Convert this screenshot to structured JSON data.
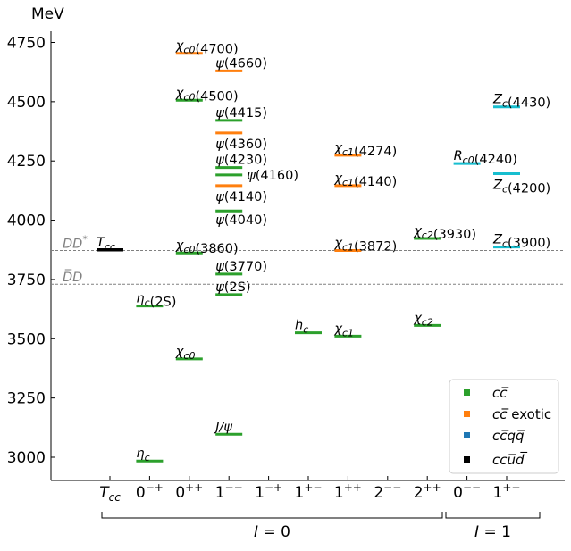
{
  "chart_data": {
    "type": "scatter",
    "yunit": "MeV",
    "ylim": [
      2900,
      4800
    ],
    "yticks": [
      3000,
      3250,
      3500,
      3750,
      4000,
      4250,
      4500,
      4750
    ],
    "xcategories": [
      {
        "label": "T_cc",
        "html": "T<sub>cc</sub>"
      },
      {
        "label": "0^{-+}",
        "html": "0<sup>−+</sup>"
      },
      {
        "label": "0^{++}",
        "html": "0<sup>++</sup>"
      },
      {
        "label": "1^{--}",
        "html": "1<sup>−−</sup>"
      },
      {
        "label": "1^{-+}",
        "html": "1<sup>−+</sup>"
      },
      {
        "label": "1^{+-}",
        "html": "1<sup>+−</sup>"
      },
      {
        "label": "1^{++}",
        "html": "1<sup>++</sup>"
      },
      {
        "label": "2^{--}",
        "html": "2<sup>−−</sup>"
      },
      {
        "label": "2^{++}",
        "html": "2<sup>++</sup>"
      },
      {
        "label": "0^{--}",
        "html": "0<sup>−−</sup>"
      },
      {
        "label": "1^{+-}",
        "html": "1<sup>+−</sup>"
      }
    ],
    "groups": [
      {
        "label": "I = 0",
        "from": 0,
        "to": 8
      },
      {
        "label": "I = 1",
        "from": 9,
        "to": 10
      }
    ],
    "thresholds": [
      {
        "label": "DD*",
        "value": 3872
      },
      {
        "label": "D̅D",
        "value": 3730
      }
    ],
    "legend": {
      "placement": "lower-right",
      "entries": [
        {
          "label": "cc̅",
          "color": "#2ca02c"
        },
        {
          "label": "cc̅ exotic",
          "color": "#ff7f0e"
        },
        {
          "label": "cc̅qq̅",
          "color": "#1f77b4"
        },
        {
          "label": "ccu̅d̅",
          "color": "#000000"
        }
      ]
    },
    "states": [
      {
        "name": "T_cc",
        "x": 0,
        "y": 3875,
        "kind": "ccud",
        "color": "#000000"
      },
      {
        "name": "η_c(2S)",
        "x": 1,
        "y": 3638,
        "kind": "cc",
        "color": "#2ca02c"
      },
      {
        "name": "η_c",
        "x": 1,
        "y": 2984,
        "kind": "cc",
        "color": "#2ca02c"
      },
      {
        "name": "χ_c0(4700)",
        "x": 2,
        "y": 4704,
        "kind": "cc exotic",
        "color": "#ff7f0e"
      },
      {
        "name": "χ_c0(4500)",
        "x": 2,
        "y": 4506,
        "kind": "cc",
        "color": "#2ca02c"
      },
      {
        "name": "χ_c0(3860)",
        "x": 2,
        "y": 3862,
        "kind": "cc",
        "color": "#2ca02c"
      },
      {
        "name": "χ_c0",
        "x": 2,
        "y": 3415,
        "kind": "cc",
        "color": "#2ca02c"
      },
      {
        "name": "ψ(4660)",
        "x": 3,
        "y": 4630,
        "kind": "cc exotic",
        "color": "#ff7f0e"
      },
      {
        "name": "ψ(4415)",
        "x": 3,
        "y": 4421,
        "kind": "cc",
        "color": "#2ca02c"
      },
      {
        "name": "ψ(4360)",
        "x": 3,
        "y": 4368,
        "kind": "cc exotic",
        "color": "#ff7f0e"
      },
      {
        "name": "ψ(4230)",
        "x": 3,
        "y": 4222,
        "kind": "cc",
        "color": "#2ca02c"
      },
      {
        "name": "ψ(4160)",
        "x": 3,
        "y": 4191,
        "kind": "cc",
        "color": "#2ca02c"
      },
      {
        "name": "ψ(4140)",
        "x": 3,
        "y": 4146,
        "kind": "cc exotic",
        "color": "#ff7f0e"
      },
      {
        "name": "ψ(4040)",
        "x": 3,
        "y": 4039,
        "kind": "cc",
        "color": "#2ca02c"
      },
      {
        "name": "ψ(3770)",
        "x": 3,
        "y": 3773,
        "kind": "cc",
        "color": "#2ca02c"
      },
      {
        "name": "ψ(2S)",
        "x": 3,
        "y": 3686,
        "kind": "cc",
        "color": "#2ca02c"
      },
      {
        "name": "J/ψ",
        "x": 3,
        "y": 3097,
        "kind": "cc",
        "color": "#2ca02c"
      },
      {
        "name": "h_c",
        "x": 5,
        "y": 3525,
        "kind": "cc",
        "color": "#2ca02c"
      },
      {
        "name": "χ_c1(4274)",
        "x": 6,
        "y": 4274,
        "kind": "cc exotic",
        "color": "#ff7f0e"
      },
      {
        "name": "χ_c1(4140)",
        "x": 6,
        "y": 4146,
        "kind": "cc exotic",
        "color": "#ff7f0e"
      },
      {
        "name": "χ_c1(3872)",
        "x": 6,
        "y": 3872,
        "kind": "cc exotic",
        "color": "#ff7f0e"
      },
      {
        "name": "χ_c1",
        "x": 6,
        "y": 3511,
        "kind": "cc",
        "color": "#2ca02c"
      },
      {
        "name": "χ_c2(3930)",
        "x": 8,
        "y": 3923,
        "kind": "cc",
        "color": "#2ca02c"
      },
      {
        "name": "χ_c2",
        "x": 8,
        "y": 3556,
        "kind": "cc",
        "color": "#2ca02c"
      },
      {
        "name": "R_c0(4240)",
        "x": 9,
        "y": 4239,
        "kind": "ccqq",
        "color": "#17becf"
      },
      {
        "name": "Z_c(4430)",
        "x": 10,
        "y": 4478,
        "kind": "ccqq",
        "color": "#17becf"
      },
      {
        "name": "Z_c(4200)",
        "x": 10,
        "y": 4196,
        "kind": "ccqq",
        "color": "#17becf"
      },
      {
        "name": "Z_c(3900)",
        "x": 10,
        "y": 3887,
        "kind": "ccqq",
        "color": "#17becf"
      }
    ]
  },
  "labels": {
    "T_cc": "T<sub>cc</sub>",
    "eta_c2S": "η<sub>c</sub>(2<tspan font-style='italic'>S</tspan>)",
    "eta_c": "η<sub>c</sub>"
  }
}
